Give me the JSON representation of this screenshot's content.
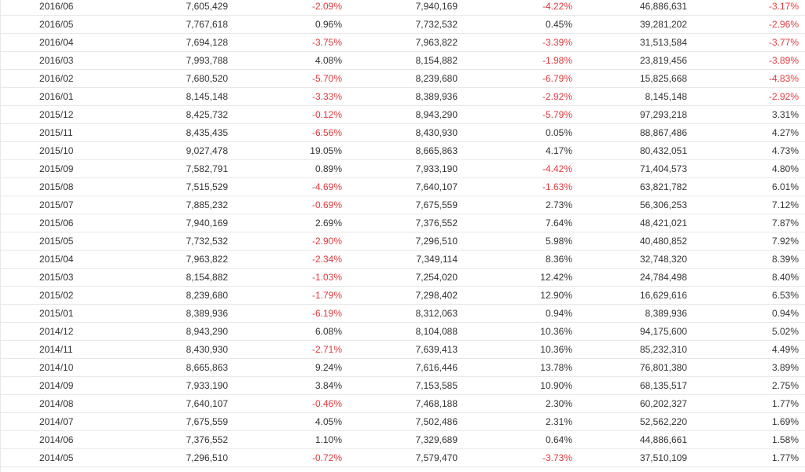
{
  "colors": {
    "negative": "#e03a3e",
    "positive": "#333333",
    "row_border": "#e8e8e8"
  },
  "rows": [
    {
      "month": "2016/06",
      "v1": "7,605,429",
      "p1": "-2.09%",
      "v2": "7,940,169",
      "p2": "-4.22%",
      "v3": "46,886,631",
      "p3": "-3.17%"
    },
    {
      "month": "2016/05",
      "v1": "7,767,618",
      "p1": "0.96%",
      "v2": "7,732,532",
      "p2": "0.45%",
      "v3": "39,281,202",
      "p3": "-2.96%"
    },
    {
      "month": "2016/04",
      "v1": "7,694,128",
      "p1": "-3.75%",
      "v2": "7,963,822",
      "p2": "-3.39%",
      "v3": "31,513,584",
      "p3": "-3.77%"
    },
    {
      "month": "2016/03",
      "v1": "7,993,788",
      "p1": "4.08%",
      "v2": "8,154,882",
      "p2": "-1.98%",
      "v3": "23,819,456",
      "p3": "-3.89%"
    },
    {
      "month": "2016/02",
      "v1": "7,680,520",
      "p1": "-5.70%",
      "v2": "8,239,680",
      "p2": "-6.79%",
      "v3": "15,825,668",
      "p3": "-4.83%"
    },
    {
      "month": "2016/01",
      "v1": "8,145,148",
      "p1": "-3.33%",
      "v2": "8,389,936",
      "p2": "-2.92%",
      "v3": "8,145,148",
      "p3": "-2.92%"
    },
    {
      "month": "2015/12",
      "v1": "8,425,732",
      "p1": "-0.12%",
      "v2": "8,943,290",
      "p2": "-5.79%",
      "v3": "97,293,218",
      "p3": "3.31%"
    },
    {
      "month": "2015/11",
      "v1": "8,435,435",
      "p1": "-6.56%",
      "v2": "8,430,930",
      "p2": "0.05%",
      "v3": "88,867,486",
      "p3": "4.27%"
    },
    {
      "month": "2015/10",
      "v1": "9,027,478",
      "p1": "19.05%",
      "v2": "8,665,863",
      "p2": "4.17%",
      "v3": "80,432,051",
      "p3": "4.73%"
    },
    {
      "month": "2015/09",
      "v1": "7,582,791",
      "p1": "0.89%",
      "v2": "7,933,190",
      "p2": "-4.42%",
      "v3": "71,404,573",
      "p3": "4.80%"
    },
    {
      "month": "2015/08",
      "v1": "7,515,529",
      "p1": "-4.69%",
      "v2": "7,640,107",
      "p2": "-1.63%",
      "v3": "63,821,782",
      "p3": "6.01%"
    },
    {
      "month": "2015/07",
      "v1": "7,885,232",
      "p1": "-0.69%",
      "v2": "7,675,559",
      "p2": "2.73%",
      "v3": "56,306,253",
      "p3": "7.12%"
    },
    {
      "month": "2015/06",
      "v1": "7,940,169",
      "p1": "2.69%",
      "v2": "7,376,552",
      "p2": "7.64%",
      "v3": "48,421,021",
      "p3": "7.87%"
    },
    {
      "month": "2015/05",
      "v1": "7,732,532",
      "p1": "-2.90%",
      "v2": "7,296,510",
      "p2": "5.98%",
      "v3": "40,480,852",
      "p3": "7.92%"
    },
    {
      "month": "2015/04",
      "v1": "7,963,822",
      "p1": "-2.34%",
      "v2": "7,349,114",
      "p2": "8.36%",
      "v3": "32,748,320",
      "p3": "8.39%"
    },
    {
      "month": "2015/03",
      "v1": "8,154,882",
      "p1": "-1.03%",
      "v2": "7,254,020",
      "p2": "12.42%",
      "v3": "24,784,498",
      "p3": "8.40%"
    },
    {
      "month": "2015/02",
      "v1": "8,239,680",
      "p1": "-1.79%",
      "v2": "7,298,402",
      "p2": "12.90%",
      "v3": "16,629,616",
      "p3": "6.53%"
    },
    {
      "month": "2015/01",
      "v1": "8,389,936",
      "p1": "-6.19%",
      "v2": "8,312,063",
      "p2": "0.94%",
      "v3": "8,389,936",
      "p3": "0.94%"
    },
    {
      "month": "2014/12",
      "v1": "8,943,290",
      "p1": "6.08%",
      "v2": "8,104,088",
      "p2": "10.36%",
      "v3": "94,175,600",
      "p3": "5.02%"
    },
    {
      "month": "2014/11",
      "v1": "8,430,930",
      "p1": "-2.71%",
      "v2": "7,639,413",
      "p2": "10.36%",
      "v3": "85,232,310",
      "p3": "4.49%"
    },
    {
      "month": "2014/10",
      "v1": "8,665,863",
      "p1": "9.24%",
      "v2": "7,616,446",
      "p2": "13.78%",
      "v3": "76,801,380",
      "p3": "3.89%"
    },
    {
      "month": "2014/09",
      "v1": "7,933,190",
      "p1": "3.84%",
      "v2": "7,153,585",
      "p2": "10.90%",
      "v3": "68,135,517",
      "p3": "2.75%"
    },
    {
      "month": "2014/08",
      "v1": "7,640,107",
      "p1": "-0.46%",
      "v2": "7,468,188",
      "p2": "2.30%",
      "v3": "60,202,327",
      "p3": "1.77%"
    },
    {
      "month": "2014/07",
      "v1": "7,675,559",
      "p1": "4.05%",
      "v2": "7,502,486",
      "p2": "2.31%",
      "v3": "52,562,220",
      "p3": "1.69%"
    },
    {
      "month": "2014/06",
      "v1": "7,376,552",
      "p1": "1.10%",
      "v2": "7,329,689",
      "p2": "0.64%",
      "v3": "44,886,661",
      "p3": "1.58%"
    },
    {
      "month": "2014/05",
      "v1": "7,296,510",
      "p1": "-0.72%",
      "v2": "7,579,470",
      "p2": "-3.73%",
      "v3": "37,510,109",
      "p3": "1.77%"
    }
  ]
}
